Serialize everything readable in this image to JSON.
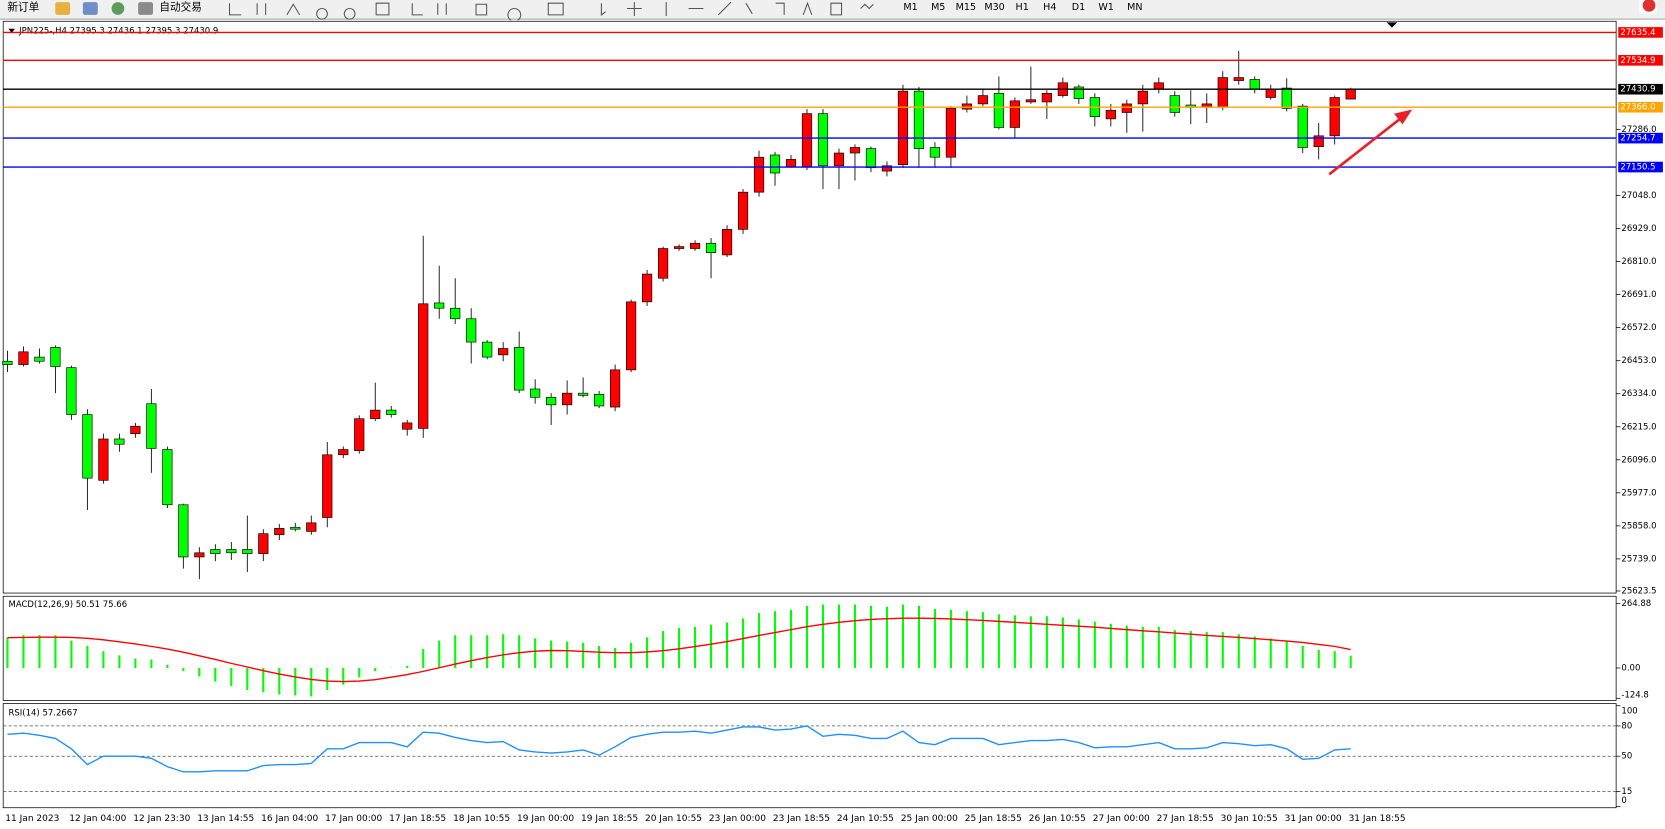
{
  "toolbar": {
    "new_order": "新订单",
    "auto_trading": "自动交易",
    "timeframes": [
      "M1",
      "M5",
      "M15",
      "M30",
      "H1",
      "H4",
      "D1",
      "W1",
      "MN"
    ]
  },
  "chart_data": [
    {
      "type": "candlestick",
      "title": "JPN225-,H4  27395.3 27436.1 27395.3 27430.9",
      "categories": [
        "11 Jan 2023",
        null,
        null,
        null,
        "12 Jan 04:00",
        null,
        null,
        null,
        "12 Jan 23:30",
        null,
        null,
        null,
        "13 Jan 14:55",
        null,
        null,
        null,
        "16 Jan 04:00",
        null,
        null,
        null,
        "17 Jan 00:00",
        null,
        null,
        null,
        "17 Jan 18:55",
        null,
        null,
        null,
        "18 Jan 10:55",
        null,
        null,
        null,
        "19 Jan 00:00",
        null,
        null,
        null,
        "19 Jan 18:55",
        null,
        null,
        null,
        "20 Jan 10:55",
        null,
        null,
        null,
        "23 Jan 00:00",
        null,
        null,
        null,
        "23 Jan 18:55",
        null,
        null,
        null,
        "24 Jan 10:55",
        null,
        null,
        null,
        "25 Jan 00:00",
        null,
        null,
        null,
        "25 Jan 18:55",
        null,
        null,
        null,
        "26 Jan 10:55",
        null,
        null,
        null,
        "27 Jan 00:00",
        null,
        null,
        null,
        "27 Jan 18:55",
        null,
        null,
        null,
        "30 Jan 10:55",
        null,
        null,
        null,
        "31 Jan 00:00",
        null,
        null,
        null,
        "31 Jan 18:55"
      ],
      "open": [
        26451,
        26439,
        26466,
        26501,
        26428,
        26259,
        26022,
        26171,
        26190,
        26298,
        26133,
        25934,
        25746,
        25773,
        25773,
        25773,
        25758,
        25826,
        25853,
        25838,
        25888,
        26114,
        26129,
        26244,
        26275,
        26206,
        26209,
        26661,
        26642,
        26604,
        26520,
        26474,
        26501,
        26351,
        26321,
        26294,
        26336,
        26332,
        26286,
        26420,
        26665,
        26750,
        26857,
        26857,
        26876,
        26834,
        26926,
        27060,
        27194,
        27152,
        27152,
        27343,
        27155,
        27201,
        27217,
        27136,
        27159,
        27424,
        27221,
        27186,
        27359,
        27378,
        27416,
        27293,
        27385,
        27385,
        27408,
        27439,
        27401,
        27324,
        27347,
        27378,
        27431,
        27408,
        27374,
        27366,
        27366,
        27462,
        27466,
        27401,
        27435,
        27370,
        27224,
        27263,
        27395.3
      ],
      "high": [
        26489,
        26504,
        26497,
        26508,
        26435,
        26278,
        26190,
        26190,
        26229,
        26351,
        26144,
        25938,
        25781,
        25792,
        25800,
        25895,
        25846,
        25865,
        25869,
        25895,
        26160,
        26144,
        26256,
        26374,
        26290,
        26240,
        26903,
        26795,
        26750,
        26642,
        26527,
        26520,
        26558,
        26386,
        26336,
        26382,
        26393,
        26344,
        26439,
        26673,
        26780,
        26864,
        26872,
        26887,
        26895,
        26941,
        27071,
        27209,
        27205,
        27194,
        27359,
        27359,
        27217,
        27232,
        27224,
        27171,
        27447,
        27439,
        27240,
        27370,
        27408,
        27431,
        27477,
        27401,
        27512,
        27427,
        27473,
        27447,
        27416,
        27378,
        27393,
        27447,
        27473,
        27424,
        27427,
        27416,
        27496,
        27569,
        27477,
        27447,
        27470,
        27378,
        27309,
        27408,
        27436.1
      ],
      "low": [
        26412,
        26432,
        26443,
        26336,
        26240,
        25915,
        26010,
        26125,
        26175,
        26049,
        25922,
        25704,
        25666,
        25731,
        25735,
        25692,
        25731,
        25807,
        25838,
        25826,
        25853,
        26102,
        26118,
        26236,
        26248,
        26183,
        26175,
        26604,
        26585,
        26443,
        26458,
        26451,
        26336,
        26298,
        26221,
        26259,
        26321,
        26282,
        26271,
        26412,
        26650,
        26738,
        26849,
        26849,
        26750,
        26826,
        26910,
        27044,
        27083,
        27148,
        27140,
        27071,
        27071,
        27102,
        27132,
        27117,
        27148,
        27148,
        27148,
        27148,
        27347,
        27370,
        27286,
        27255,
        27378,
        27324,
        27401,
        27378,
        27297,
        27297,
        27274,
        27278,
        27416,
        27332,
        27305,
        27309,
        27355,
        27447,
        27416,
        27393,
        27351,
        27201,
        27178,
        27232,
        27395.3
      ],
      "close": [
        26439,
        26485,
        26451,
        26432,
        26259,
        26030,
        26171,
        26152,
        26217,
        26137,
        25934,
        25746,
        25761,
        25758,
        25761,
        25758,
        25830,
        25849,
        25846,
        25869,
        26114,
        26133,
        26244,
        26275,
        26259,
        26229,
        26658,
        26642,
        26604,
        26520,
        26466,
        26497,
        26347,
        26321,
        26294,
        26336,
        26328,
        26290,
        26420,
        26665,
        26765,
        26857,
        26864,
        26876,
        26842,
        26926,
        27060,
        27186,
        27129,
        27178,
        27343,
        27155,
        27201,
        27221,
        27148,
        27155,
        27424,
        27217,
        27186,
        27362,
        27378,
        27408,
        27293,
        27389,
        27393,
        27416,
        27454,
        27397,
        27332,
        27355,
        27378,
        27424,
        27454,
        27347,
        27366,
        27378,
        27473,
        27473,
        27431,
        27431,
        27362,
        27221,
        27263,
        27401,
        27430.9
      ],
      "up_color": "#ff0000",
      "down_color": "#00ff00",
      "ylim": [
        25616,
        27668
      ],
      "yticks": [
        25623.5,
        {
          "value": 25739,
          "label": "25739.0"
        },
        {
          "value": 25858,
          "label": "25858.0"
        },
        {
          "value": 25977,
          "label": "25977.0"
        },
        {
          "value": 26096,
          "label": "26096.0"
        },
        {
          "value": 26215,
          "label": "26215.0"
        },
        {
          "value": 26334,
          "label": "26334.0"
        },
        {
          "value": 26453,
          "label": "26453.0"
        },
        {
          "value": 26572,
          "label": "26572.0"
        },
        {
          "value": 26691,
          "label": "26691.0"
        },
        {
          "value": 26810,
          "label": "26810.0"
        },
        {
          "value": 26929,
          "label": "26929.0"
        },
        {
          "value": 27048,
          "label": "27048.0"
        },
        {
          "value": 27286,
          "label": "27286.0"
        }
      ],
      "levels": [
        {
          "value": 27635.4,
          "color": "#ff0000"
        },
        {
          "value": 27534.9,
          "color": "#ff0000"
        },
        {
          "value": 27430.9,
          "color": "#000000"
        },
        {
          "value": 27366,
          "label": "27366.0",
          "color": "#ffa500"
        },
        {
          "value": 27254.7,
          "color": "#0000ff"
        },
        {
          "value": 27150.5,
          "color": "#0000ff"
        }
      ]
    },
    {
      "type": "macd",
      "title": "MACD(12,26,9) 50.51 75.66",
      "values": [
        126,
        135,
        135,
        135,
        113,
        91,
        69,
        52,
        39,
        35,
        13,
        -13,
        -35,
        -56,
        -74,
        -91,
        -100,
        -109,
        -113,
        -117,
        -91,
        -69,
        -39,
        -13,
        1,
        9,
        78,
        113,
        135,
        135,
        135,
        139,
        135,
        122,
        113,
        109,
        104,
        91,
        82,
        104,
        126,
        152,
        165,
        169,
        178,
        187,
        204,
        226,
        234,
        239,
        256,
        261,
        261,
        261,
        256,
        252,
        261,
        256,
        243,
        239,
        234,
        230,
        221,
        217,
        213,
        213,
        208,
        200,
        191,
        182,
        174,
        169,
        169,
        156,
        152,
        148,
        148,
        139,
        130,
        122,
        113,
        91,
        74,
        69,
        50.51
      ],
      "signal": [
        125,
        126,
        127,
        127,
        126,
        122,
        116,
        108,
        99,
        89,
        78,
        65,
        50,
        35,
        19,
        4,
        -11,
        -25,
        -37,
        -47,
        -54,
        -56,
        -54,
        -48,
        -38,
        -27,
        -14,
        1,
        16,
        30,
        43,
        54,
        63,
        69,
        72,
        71,
        68,
        65,
        63,
        63,
        66,
        71,
        79,
        88,
        98,
        109,
        121,
        134,
        146,
        158,
        170,
        180,
        188,
        195,
        200,
        203,
        205,
        205,
        204,
        202,
        199,
        196,
        192,
        188,
        184,
        180,
        176,
        172,
        168,
        163,
        158,
        153,
        149,
        144,
        139,
        134,
        130,
        126,
        121,
        116,
        111,
        105,
        97,
        89,
        75.66
      ],
      "color": "#00ff00",
      "signal_color": "#ff0000",
      "ylim": [
        -124.8,
        264.88
      ],
      "yticks": [
        264.88,
        {
          "value": 0,
          "label": "0.00"
        },
        -124.8
      ]
    },
    {
      "type": "line",
      "title": "RSI(14) 57.2667",
      "values": [
        71.7,
        72.8,
        70.7,
        67.6,
        57.3,
        41.7,
        50,
        50,
        50,
        47.9,
        39.7,
        34.5,
        34.5,
        35.5,
        35.5,
        35.5,
        40.7,
        41.7,
        41.7,
        42.8,
        57.3,
        57.3,
        63.5,
        63.5,
        63.5,
        59.3,
        73.8,
        72.8,
        68.6,
        65.5,
        63.5,
        64.5,
        56.2,
        54.2,
        53.1,
        54.2,
        56.2,
        51,
        59.3,
        68.6,
        71.7,
        73.8,
        73.8,
        74.8,
        72.8,
        75.9,
        79,
        79,
        75.9,
        76.9,
        80,
        69.7,
        71.7,
        70.7,
        67.6,
        67.6,
        74.8,
        63.5,
        61.4,
        67.6,
        67.6,
        67.6,
        61.4,
        63.5,
        65.5,
        65.5,
        66.6,
        63.5,
        58.3,
        59.3,
        59.3,
        61.4,
        63.5,
        57.3,
        57.3,
        58.3,
        63.5,
        62.4,
        60.4,
        61.4,
        57.3,
        46.9,
        47.9,
        56.2,
        57.2667
      ],
      "color": "#1e90ff",
      "ylim": [
        0,
        100
      ],
      "yticks": [
        0,
        15,
        50,
        80,
        100
      ],
      "levels": [
        15,
        50,
        80
      ]
    }
  ]
}
